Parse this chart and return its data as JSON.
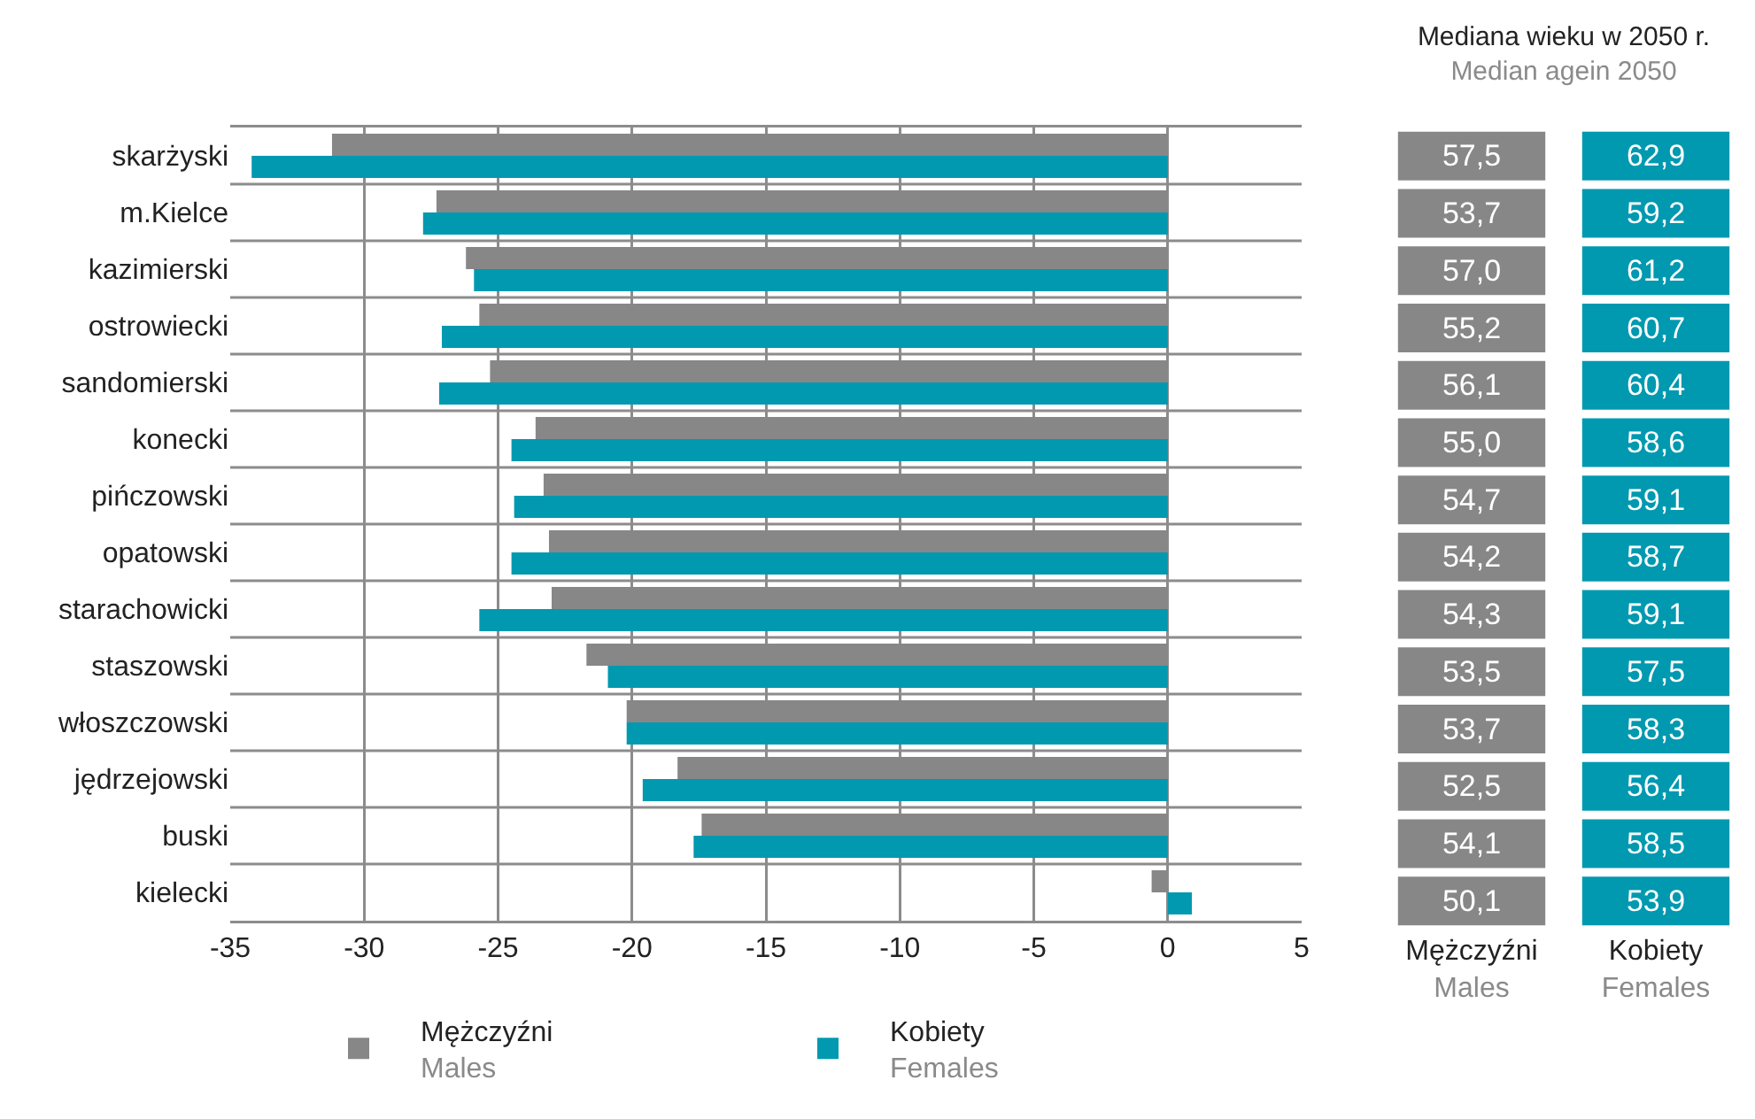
{
  "chart_data": [
    {
      "type": "bar",
      "orientation": "horizontal",
      "categories": [
        "skarżyski",
        "m.Kielce",
        "kazimierski",
        "ostrowiecki",
        "sandomierski",
        "konecki",
        "pińczowski",
        "opatowski",
        "starachowicki",
        "staszowski",
        "włoszczowski",
        "jędrzejowski",
        "buski",
        "kielecki"
      ],
      "series": [
        {
          "name": "Mężczyźni\nMales",
          "color": "#878787",
          "values": [
            -31.2,
            -27.3,
            -26.2,
            -25.7,
            -25.3,
            -23.6,
            -23.3,
            -23.1,
            -23.0,
            -21.7,
            -20.2,
            -18.3,
            -17.4,
            -0.6
          ]
        },
        {
          "name": "Kobiety\nFemales",
          "color": "#0099b0",
          "values": [
            -34.2,
            -27.8,
            -25.9,
            -27.1,
            -27.2,
            -24.5,
            -24.4,
            -24.5,
            -25.7,
            -20.9,
            -20.2,
            -19.6,
            -17.7,
            0.9
          ]
        }
      ],
      "xlim": [
        -35,
        5
      ],
      "xticks": [
        -35,
        -30,
        -25,
        -20,
        -15,
        -10,
        -5,
        0,
        5
      ],
      "grid": true,
      "legend": "bottom"
    },
    {
      "type": "heatmap",
      "title": "Mediana wieku w 2050 r.",
      "subtitle": "Median agein 2050",
      "categories": [
        "Mężczyźni\nMales",
        "Kobiety\nFemales"
      ],
      "y_categories": [
        null,
        null,
        null,
        null,
        null,
        null,
        null,
        null,
        null,
        null,
        null,
        null,
        null,
        null
      ],
      "colors": [
        "#878787",
        "#0099b0"
      ],
      "cells": [
        [
          57.5,
          62.9
        ],
        [
          53.7,
          59.2
        ],
        [
          57.0,
          61.2
        ],
        [
          55.2,
          60.7
        ],
        [
          56.1,
          60.4
        ],
        [
          55.0,
          58.6
        ],
        [
          54.7,
          59.1
        ],
        [
          54.2,
          58.7
        ],
        [
          54.3,
          59.1
        ],
        [
          53.5,
          57.5
        ],
        [
          53.7,
          58.3
        ],
        [
          52.5,
          56.4
        ],
        [
          54.1,
          58.5
        ],
        [
          50.1,
          53.9
        ]
      ],
      "cell_labels": [
        [
          "57,5",
          "62,9"
        ],
        [
          "53,7",
          "59,2"
        ],
        [
          "57,0",
          "61,2"
        ],
        [
          "55,2",
          "60,7"
        ],
        [
          "56,1",
          "60,4"
        ],
        [
          "55,0",
          "58,6"
        ],
        [
          "54,7",
          "59,1"
        ],
        [
          "54,2",
          "58,7"
        ],
        [
          "54,3",
          "59,1"
        ],
        [
          "53,5",
          "57,5"
        ],
        [
          "53,7",
          "58,3"
        ],
        [
          "52,5",
          "56,4"
        ],
        [
          "54,1",
          "58,5"
        ],
        [
          "50,1",
          "53,9"
        ]
      ]
    }
  ]
}
